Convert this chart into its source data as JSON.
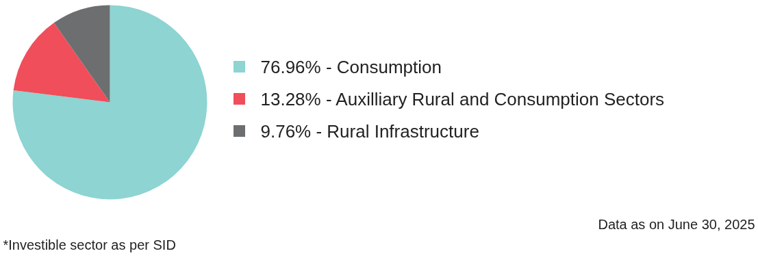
{
  "chart_data": {
    "type": "pie",
    "categories": [
      "76.96% - Consumption",
      "13.28% - Auxilliary Rural and Consumption Sectors",
      "9.76% - Rural Infrastructure"
    ],
    "values": [
      76.96,
      13.28,
      9.76
    ],
    "colors": [
      "#8dd4d2",
      "#f04e5a",
      "#6d6e70"
    ],
    "legend": "right",
    "annotations": [
      "Data as on June 30, 2025",
      "*Investible sector as per SID"
    ]
  }
}
